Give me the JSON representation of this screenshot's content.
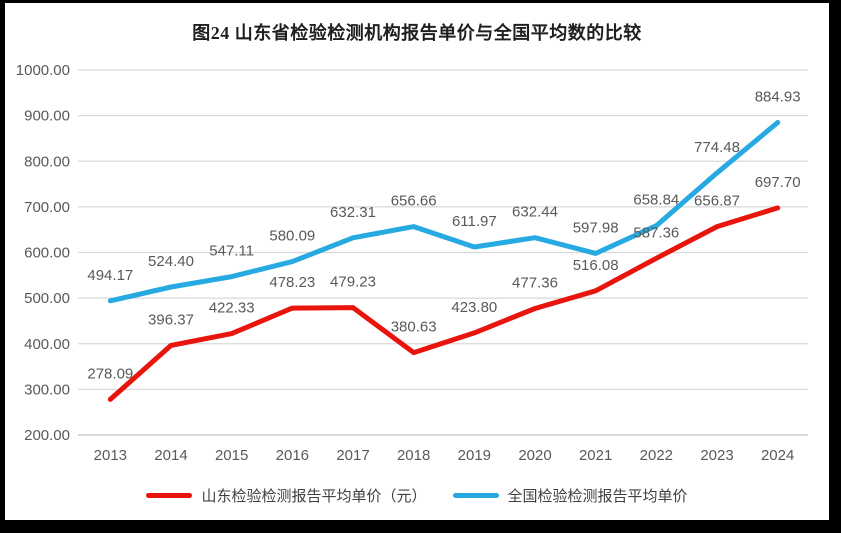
{
  "chart_data": {
    "type": "line",
    "title": "图24  山东省检验检测机构报告单价与全国平均数的比较",
    "categories": [
      "2013",
      "2014",
      "2015",
      "2016",
      "2017",
      "2018",
      "2019",
      "2020",
      "2021",
      "2022",
      "2023",
      "2024"
    ],
    "series": [
      {
        "id": "shandong",
        "name": "山东检验检测报告平均单价（元）",
        "color": "#e8150d",
        "values": [
          278.09,
          396.37,
          422.33,
          478.23,
          479.23,
          380.63,
          423.8,
          477.36,
          516.08,
          587.36,
          656.87,
          697.7
        ]
      },
      {
        "id": "national",
        "name": "全国检验检测报告平均单价",
        "color": "#27a9e1",
        "values": [
          494.17,
          524.4,
          547.11,
          580.09,
          632.31,
          656.66,
          611.97,
          632.44,
          597.98,
          658.84,
          774.48,
          884.93
        ]
      }
    ],
    "ylim": [
      200,
      1000
    ],
    "ytick_step": 100,
    "ytick_labels": [
      "1000.00",
      "900.00",
      "800.00",
      "700.00",
      "600.00",
      "500.00",
      "400.00",
      "300.00",
      "200.00"
    ],
    "xlabel": "",
    "ylabel": "",
    "grid": true,
    "value_labels": true,
    "legend_position": "bottom",
    "colors": {
      "grid": "#d9d9d9",
      "axis": "#c3c3c3",
      "tick_text": "#595959",
      "value_text": "#595959",
      "title_text": "#1f1f1f"
    }
  }
}
